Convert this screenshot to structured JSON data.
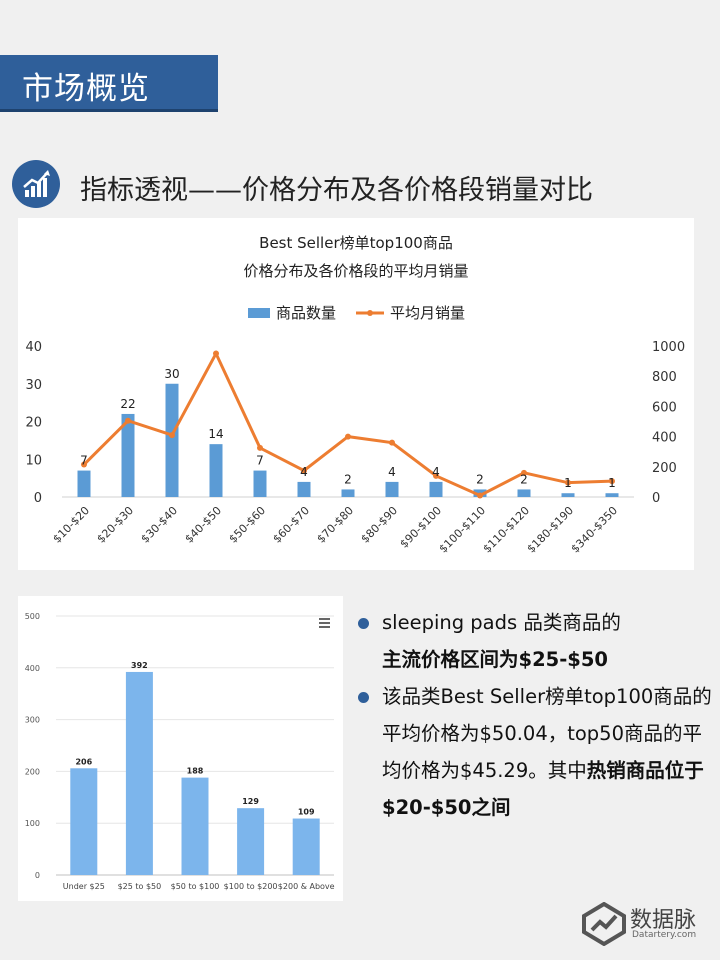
{
  "header": {
    "title": "市场概览"
  },
  "section": {
    "icon": "bar-chart-trend-icon",
    "title": "指标透视——价格分布及各价格段销量对比"
  },
  "chart_data": [
    {
      "type": "bar",
      "title": "Best Seller榜单top100商品",
      "subtitle": "价格分布及各价格段的平均月销量",
      "categories": [
        "$10-$20",
        "$20-$30",
        "$30-$40",
        "$40-$50",
        "$50-$60",
        "$60-$70",
        "$70-$80",
        "$80-$90",
        "$90-$100",
        "$100-$110",
        "$110-$120",
        "$180-$190",
        "$340-$350"
      ],
      "series": [
        {
          "name": "商品数量",
          "type": "bar",
          "axis": "left",
          "color": "#5b9bd5",
          "values": [
            7,
            22,
            30,
            14,
            7,
            4,
            2,
            4,
            4,
            2,
            2,
            1,
            1
          ]
        },
        {
          "name": "平均月销量",
          "type": "line",
          "axis": "right",
          "color": "#ed7d31",
          "values": [
            215,
            505,
            410,
            950,
            325,
            175,
            400,
            360,
            140,
            10,
            160,
            95,
            105
          ]
        }
      ],
      "ylim": [
        0,
        40
      ],
      "yticks": [
        0,
        10,
        20,
        30,
        40
      ],
      "y2lim": [
        0,
        1000
      ],
      "y2ticks": [
        0,
        200,
        400,
        600,
        800,
        1000
      ],
      "legend": "top-center",
      "grid": false
    },
    {
      "type": "bar",
      "categories": [
        "Under $25",
        "$25 to $50",
        "$50 to $100",
        "$100 to $200",
        "$200 & Above"
      ],
      "values": [
        206,
        392,
        188,
        129,
        109
      ],
      "ylim": [
        0,
        500
      ],
      "yticks": [
        0,
        100,
        200,
        300,
        400,
        500
      ],
      "color": "#7cb5ec",
      "grid": true,
      "menu_icon": "hamburger-menu-icon"
    }
  ],
  "bullets": [
    {
      "text": "sleeping pads 品类商品的",
      "bold": "主流价格区间为$25-$50",
      "tail": ""
    },
    {
      "text": "该品类Best Seller榜单top100商品的平均价格为$50.04，top50商品的平均价格为$45.29。其中",
      "bold": "热销商品位于$20-$50之间",
      "tail": ""
    }
  ],
  "logo": {
    "name": "数据脉",
    "sub": "Datartery.com",
    "icon": "datartery-logo-icon"
  }
}
